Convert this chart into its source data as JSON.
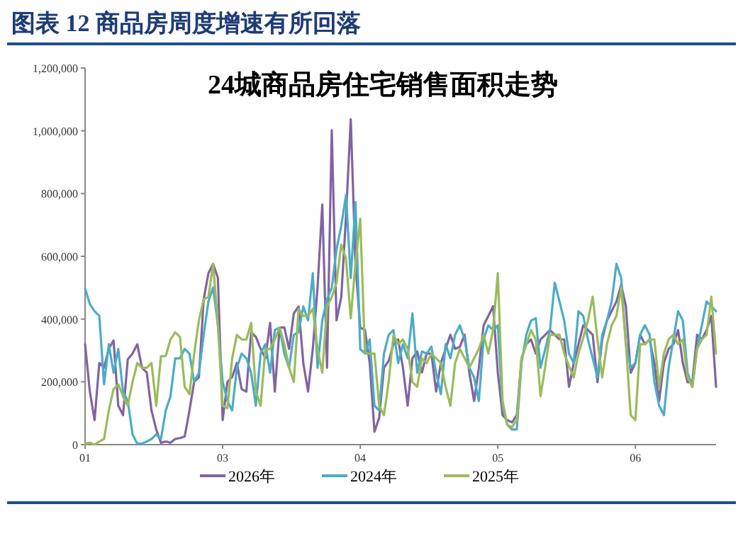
{
  "chart_data": {
    "type": "line",
    "title": "图表 12   商品房周度增速有所回落",
    "subtitle": "24城商品房住宅销售面积走势",
    "categories": [
      "01",
      null,
      null,
      null,
      null,
      null,
      null,
      null,
      null,
      null,
      null,
      null,
      null,
      null,
      null,
      null,
      null,
      null,
      null,
      null,
      null,
      null,
      null,
      null,
      null,
      null,
      null,
      null,
      null,
      "03",
      null,
      null,
      null,
      null,
      null,
      null,
      null,
      null,
      null,
      null,
      null,
      null,
      null,
      null,
      null,
      null,
      null,
      null,
      null,
      null,
      null,
      null,
      null,
      null,
      null,
      null,
      null,
      null,
      "04",
      null,
      null,
      null,
      null,
      null,
      null,
      null,
      null,
      null,
      null,
      null,
      null,
      null,
      null,
      null,
      null,
      null,
      null,
      null,
      null,
      null,
      null,
      null,
      null,
      null,
      null,
      null,
      null,
      "05",
      null,
      null,
      null,
      null,
      null,
      null,
      null,
      null,
      null,
      null,
      null,
      null,
      null,
      null,
      null,
      null,
      null,
      null,
      null,
      null,
      null,
      null,
      null,
      null,
      null,
      null,
      null,
      null,
      "06",
      null,
      null,
      null,
      null,
      null,
      null,
      null,
      null,
      null,
      null,
      null,
      null,
      null,
      null,
      null,
      null,
      null
    ],
    "ylim": [
      0,
      1200000
    ],
    "yticks": [
      {
        "value": 0,
        "label": "0"
      },
      {
        "value": 200000,
        "label": "200,000"
      },
      {
        "value": 400000,
        "label": "400,000"
      },
      {
        "value": 600000,
        "label": "600,000"
      },
      {
        "value": 800000,
        "label": "800,000"
      },
      {
        "value": 1000000,
        "label": "1,000,000"
      },
      {
        "value": 1200000,
        "label": "1,200,000"
      }
    ],
    "grid": false,
    "legend": "bottom",
    "marker": "none",
    "line_style": "solid",
    "series": [
      {
        "name": "2026年",
        "color": "#8064a2",
        "values": [
          320000,
          170000,
          78000,
          260000,
          245000,
          305000,
          332000,
          124000,
          94000,
          272000,
          290000,
          320000,
          245000,
          230000,
          109000,
          48000,
          6000,
          10000,
          6000,
          18000,
          21000,
          26000,
          109000,
          200000,
          215000,
          463000,
          546000,
          576000,
          531000,
          78000,
          200000,
          215000,
          260000,
          177000,
          169000,
          358000,
          343000,
          305000,
          275000,
          388000,
          169000,
          373000,
          373000,
          305000,
          418000,
          440000,
          260000,
          169000,
          305000,
          500000,
          765000,
          245000,
          1002000,
          396000,
          470000,
          728000,
          1037000,
          576000,
          373000,
          365000,
          260000,
          41000,
          86000,
          245000,
          267000,
          320000,
          335000,
          245000,
          124000,
          275000,
          297000,
          230000,
          290000,
          290000,
          169000,
          260000,
          305000,
          350000,
          305000,
          312000,
          350000,
          229000,
          139000,
          245000,
          380000,
          410000,
          441000,
          229000,
          94000,
          78000,
          71000,
          94000,
          275000,
          320000,
          335000,
          290000,
          335000,
          350000,
          365000,
          350000,
          335000,
          335000,
          184000,
          260000,
          320000,
          380000,
          365000,
          350000,
          199000,
          335000,
          395000,
          425000,
          456000,
          509000,
          441000,
          229000,
          260000,
          350000,
          320000,
          335000,
          260000,
          139000,
          260000,
          305000,
          320000,
          365000,
          260000,
          199000,
          199000,
          350000,
          335000,
          365000,
          410000,
          184000
        ]
      },
      {
        "name": "2024年",
        "color": "#4bacc6",
        "values": [
          498000,
          448000,
          425000,
          410000,
          192000,
          320000,
          229000,
          305000,
          169000,
          139000,
          33000,
          3000,
          3000,
          10000,
          18000,
          33000,
          18000,
          109000,
          154000,
          275000,
          275000,
          305000,
          290000,
          200000,
          229000,
          350000,
          456000,
          501000,
          380000,
          200000,
          139000,
          109000,
          245000,
          290000,
          275000,
          229000,
          124000,
          290000,
          320000,
          229000,
          365000,
          373000,
          290000,
          245000,
          350000,
          358000,
          440000,
          396000,
          546000,
          245000,
          396000,
          463000,
          500000,
          622000,
          697000,
          795000,
          531000,
          773000,
          305000,
          290000,
          335000,
          124000,
          109000,
          290000,
          350000,
          365000,
          260000,
          320000,
          275000,
          418000,
          229000,
          297000,
          290000,
          312000,
          229000,
          161000,
          320000,
          275000,
          350000,
          380000,
          335000,
          245000,
          214000,
          139000,
          335000,
          380000,
          365000,
          380000,
          124000,
          63000,
          48000,
          48000,
          260000,
          350000,
          395000,
          403000,
          245000,
          305000,
          365000,
          516000,
          456000,
          395000,
          290000,
          260000,
          425000,
          410000,
          335000,
          275000,
          214000,
          350000,
          395000,
          456000,
          576000,
          531000,
          320000,
          245000,
          260000,
          350000,
          380000,
          350000,
          199000,
          124000,
          94000,
          245000,
          335000,
          425000,
          395000,
          229000,
          184000,
          305000,
          380000,
          456000,
          441000,
          425000
        ]
      },
      {
        "name": "2025年",
        "color": "#9bbb59",
        "values": [
          3000,
          6000,
          0,
          10000,
          18000,
          109000,
          177000,
          192000,
          154000,
          124000,
          200000,
          260000,
          245000,
          245000,
          260000,
          124000,
          282000,
          282000,
          335000,
          358000,
          343000,
          184000,
          161000,
          290000,
          396000,
          463000,
          471000,
          576000,
          380000,
          124000,
          116000,
          275000,
          350000,
          335000,
          335000,
          388000,
          169000,
          124000,
          305000,
          305000,
          335000,
          373000,
          320000,
          245000,
          200000,
          433000,
          410000,
          410000,
          433000,
          305000,
          229000,
          440000,
          470000,
          516000,
          637000,
          592000,
          403000,
          576000,
          720000,
          290000,
          290000,
          290000,
          124000,
          94000,
          200000,
          350000,
          320000,
          335000,
          305000,
          200000,
          184000,
          275000,
          260000,
          290000,
          275000,
          260000,
          184000,
          124000,
          260000,
          305000,
          275000,
          245000,
          275000,
          305000,
          350000,
          290000,
          365000,
          546000,
          139000,
          63000,
          56000,
          78000,
          275000,
          320000,
          365000,
          335000,
          154000,
          250000,
          350000,
          350000,
          350000,
          290000,
          250000,
          214000,
          290000,
          340000,
          395000,
          471000,
          335000,
          214000,
          320000,
          380000,
          410000,
          501000,
          320000,
          94000,
          78000,
          320000,
          320000,
          335000,
          335000,
          184000,
          290000,
          335000,
          350000,
          320000,
          335000,
          214000,
          184000,
          305000,
          335000,
          350000,
          471000,
          290000
        ]
      }
    ]
  }
}
